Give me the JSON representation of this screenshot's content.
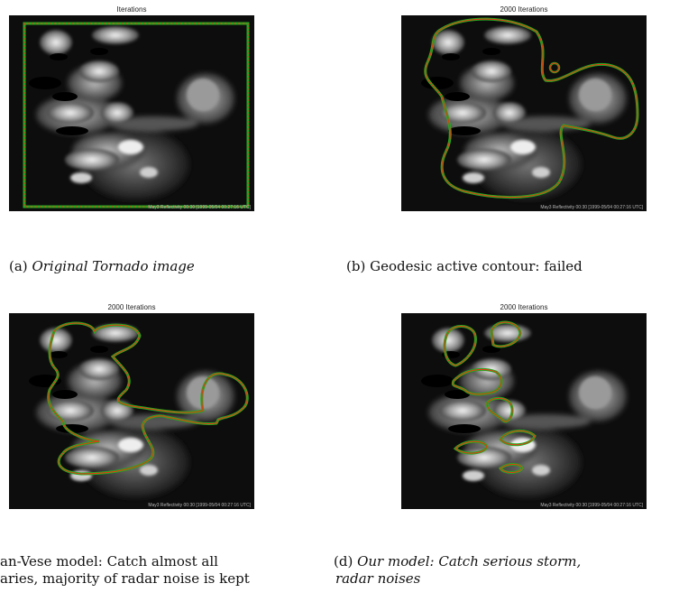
{
  "panels": [
    {
      "title": "Iterations",
      "stamp": "May3 Reflectivity 00:30 [1999-05/04 00:27:16 UTC]"
    },
    {
      "title": "2000 Iterations",
      "stamp": "May3 Reflectivity 00:30 [1999-05/04 00:27:16 UTC]"
    },
    {
      "title": "2000 Iterations",
      "stamp": "May3 Reflectivity 00:30 [1999-05/04 00:27:16 UTC]"
    },
    {
      "title": "2000 Iterations",
      "stamp": "May3 Reflectivity 00:30 [1999-05/04 00:27:16 UTC]"
    }
  ],
  "captions": {
    "a_label": "(a)",
    "a_text": "Original Tornado image",
    "b_label": "(b)",
    "b_text": "Geodesic active contour: failed",
    "c_line1": "an-Vese model:   Catch almost all",
    "c_line2": "aries, majority of radar noise is kept",
    "d_label": "(d)",
    "d_line1": "Our model: Catch serious storm,",
    "d_line2": "radar noises"
  },
  "colors": {
    "contour_outer": "#22aa22",
    "contour_inner": "#ee3311",
    "background": "#0d0d0d"
  }
}
